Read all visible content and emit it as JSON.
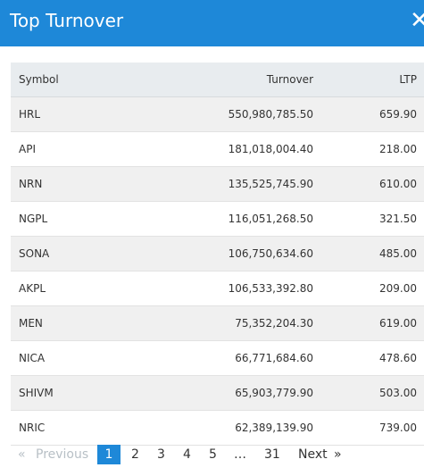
{
  "header": {
    "title": "Top Turnover",
    "close_label": "✕"
  },
  "table": {
    "columns": [
      "Symbol",
      "Turnover",
      "LTP"
    ],
    "rows": [
      {
        "symbol": "HRL",
        "turnover": "550,980,785.50",
        "ltp": "659.90"
      },
      {
        "symbol": "API",
        "turnover": "181,018,004.40",
        "ltp": "218.00"
      },
      {
        "symbol": "NRN",
        "turnover": "135,525,745.90",
        "ltp": "610.00"
      },
      {
        "symbol": "NGPL",
        "turnover": "116,051,268.50",
        "ltp": "321.50"
      },
      {
        "symbol": "SONA",
        "turnover": "106,750,634.60",
        "ltp": "485.00"
      },
      {
        "symbol": "AKPL",
        "turnover": "106,533,392.80",
        "ltp": "209.00"
      },
      {
        "symbol": "MEN",
        "turnover": "75,352,204.30",
        "ltp": "619.00"
      },
      {
        "symbol": "NICA",
        "turnover": "66,771,684.60",
        "ltp": "478.60"
      },
      {
        "symbol": "SHIVM",
        "turnover": "65,903,779.90",
        "ltp": "503.00"
      },
      {
        "symbol": "NRIC",
        "turnover": "62,389,139.90",
        "ltp": "739.00"
      }
    ]
  },
  "pagination": {
    "first": "«",
    "previous": "Previous",
    "pages": [
      "1",
      "2",
      "3",
      "4",
      "5"
    ],
    "ellipsis": "…",
    "last_page": "31",
    "next": "Next",
    "last": "»",
    "active_page": "1"
  },
  "colors": {
    "accent": "#1e88d8",
    "header_row": "#e8ecef",
    "stripe": "#f0f0f0"
  }
}
